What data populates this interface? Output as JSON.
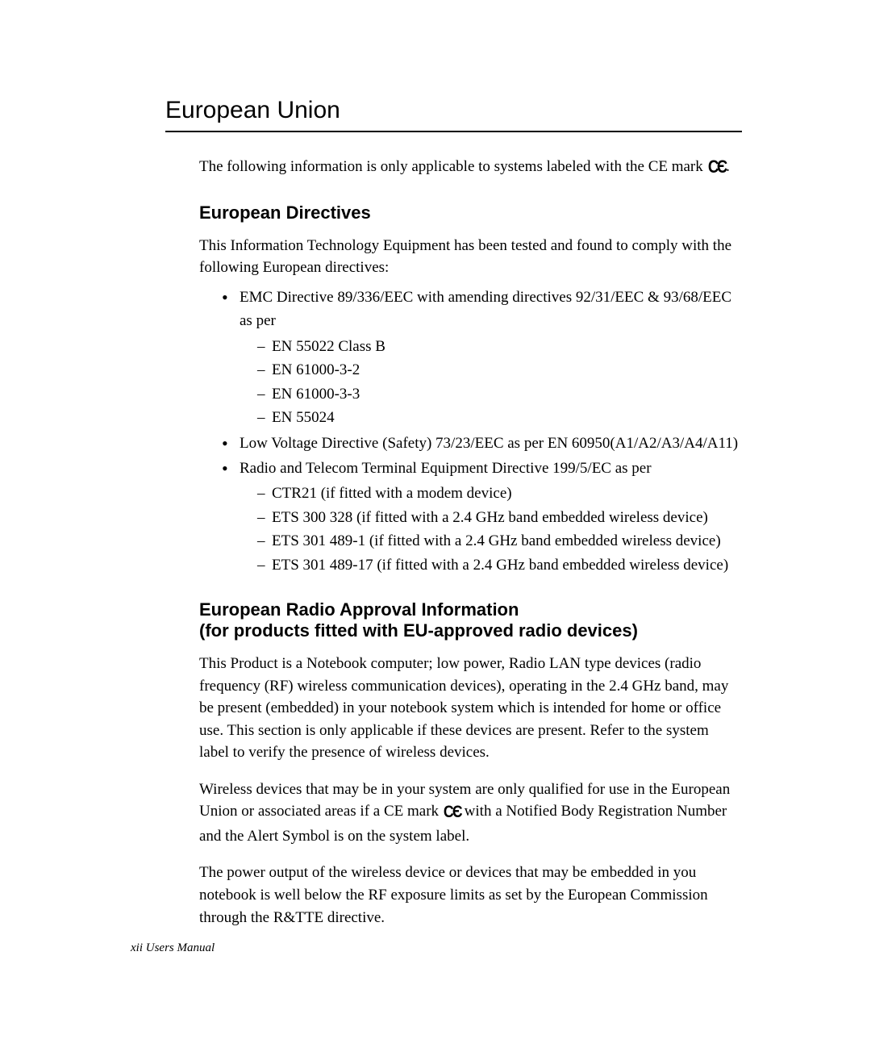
{
  "section_title": "European Union",
  "intro_text_before": "The following information is only applicable to systems labeled with the CE mark ",
  "intro_text_after": ".",
  "directives": {
    "title": "European Directives",
    "intro": "This Information Technology Equipment has been tested and found to comply with the following European directives:",
    "bullets": [
      {
        "text": "EMC Directive 89/336/EEC with amending directives 92/31/EEC & 93/68/EEC as per",
        "sub": [
          "EN 55022 Class B",
          "EN 61000-3-2",
          "EN 61000-3-3",
          "EN 55024"
        ]
      },
      {
        "text": "Low Voltage Directive (Safety) 73/23/EEC as per EN 60950(A1/A2/A3/A4/A11)",
        "sub": []
      },
      {
        "text": "Radio and Telecom Terminal Equipment Directive 199/5/EC as per",
        "sub": [
          "CTR21 (if fitted with a modem device)",
          "ETS 300 328 (if fitted with a 2.4 GHz band embedded wireless device)",
          "ETS 301 489-1 (if fitted with a 2.4 GHz band embedded wireless device)",
          "ETS 301 489-17 (if fitted with a 2.4 GHz band embedded wireless device)"
        ]
      }
    ]
  },
  "radio": {
    "title_line1": "European Radio Approval Information",
    "title_line2": "(for products fitted with EU-approved radio devices)",
    "para1": "This Product is a Notebook computer; low power, Radio LAN type devices (radio frequency (RF) wireless communication devices), operating in the 2.4 GHz band, may be present (embedded) in your notebook system which is intended for home or office use. This section is only applicable if these devices are present. Refer to the system label to verify the presence of wireless devices.",
    "para2_before": "Wireless devices that may be in your system are only qualified for use in the European Union or associated areas if a CE mark ",
    "para2_after": " with a Notified Body Registration Number and the Alert Symbol is on the system label.",
    "para3": "The power output of the wireless device or devices that may be embedded in you notebook is well below the RF exposure limits as set by the European Commission through the R&TTE directive."
  },
  "footer": "xii  Users Manual",
  "ce_glyph_c": "C",
  "ce_glyph_e": "Є"
}
